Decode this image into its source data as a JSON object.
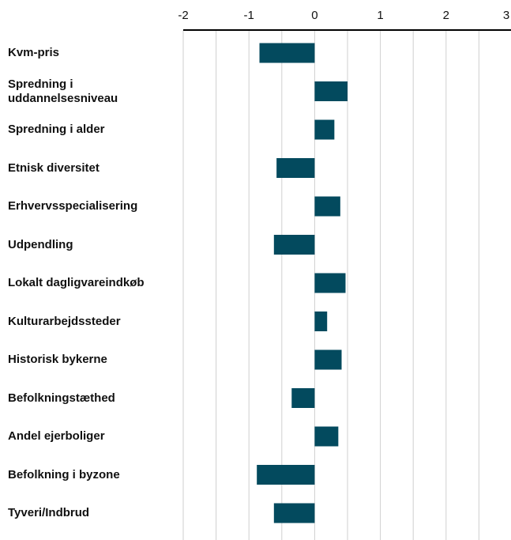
{
  "chart_data": {
    "type": "bar",
    "orientation": "horizontal",
    "categories": [
      "Kvm-pris",
      "Spredning i uddannelsesniveau",
      "Spredning i alder",
      "Etnisk diversitet",
      "Erhvervsspecialisering",
      "Udpendling",
      "Lokalt dagligvareindkøb",
      "Kulturarbejdssteder",
      "Historisk bykerne",
      "Befolkningstæthed",
      "Andel ejerboliger",
      "Befolkning i byzone",
      "Tyveri/Indbrud"
    ],
    "values": [
      -0.84,
      0.5,
      0.3,
      -0.58,
      0.39,
      -0.62,
      0.47,
      0.19,
      0.41,
      -0.35,
      0.36,
      -0.88,
      -0.62
    ],
    "color": "#034a5e",
    "xlim": [
      -2,
      3
    ],
    "xticks": [
      -2,
      -1,
      0,
      1,
      2,
      3
    ],
    "grid": true,
    "grid_step": 0.5
  }
}
